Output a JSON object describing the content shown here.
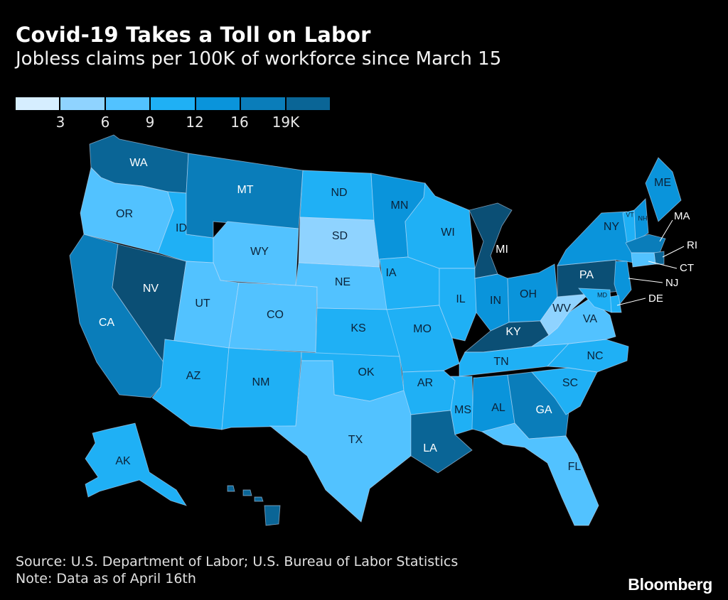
{
  "header": {
    "title": "Covid-19 Takes a Toll on Labor",
    "subtitle": "Jobless claims per 100K of workforce since March 15"
  },
  "legend": {
    "colors": [
      "#d6eeff",
      "#8fd3ff",
      "#52c2ff",
      "#1fb0f5",
      "#0a94db",
      "#0a7dba",
      "#0a6596",
      "#0b4f75"
    ],
    "ticks": [
      "3",
      "6",
      "9",
      "12",
      "16",
      "19K"
    ]
  },
  "states": {
    "WA": 6,
    "OR": 2,
    "CA": 5,
    "NV": 7,
    "ID": 3,
    "MT": 5,
    "WY": 2,
    "UT": 2,
    "AZ": 3,
    "CO": 2,
    "NM": 3,
    "ND": 3,
    "SD": 1,
    "NE": 2,
    "KS": 3,
    "OK": 3,
    "TX": 2,
    "MN": 4,
    "IA": 3,
    "MO": 3,
    "AR": 3,
    "LA": 6,
    "WI": 3,
    "IL": 3,
    "MI": 7,
    "IN": 4,
    "OH": 4,
    "KY": 7,
    "TN": 3,
    "MS": 3,
    "AL": 4,
    "GA": 5,
    "FL": 2,
    "SC": 3,
    "NC": 3,
    "VA": 2,
    "WV": 1,
    "PA": 7,
    "NY": 4,
    "ME": 4,
    "VT": 3,
    "NH": 4,
    "MA": 5,
    "RI": 6,
    "CT": 2,
    "NJ": 4,
    "DE": 3,
    "MD": 3,
    "AK": 3,
    "HI": 6
  },
  "external_labels": [
    "MA",
    "RI",
    "CT",
    "NJ",
    "DE"
  ],
  "footer": {
    "source": "Source: U.S. Department of Labor; U.S. Bureau of Labor Statistics",
    "note": "Note: Data as of April 16th",
    "brand": "Bloomberg"
  }
}
